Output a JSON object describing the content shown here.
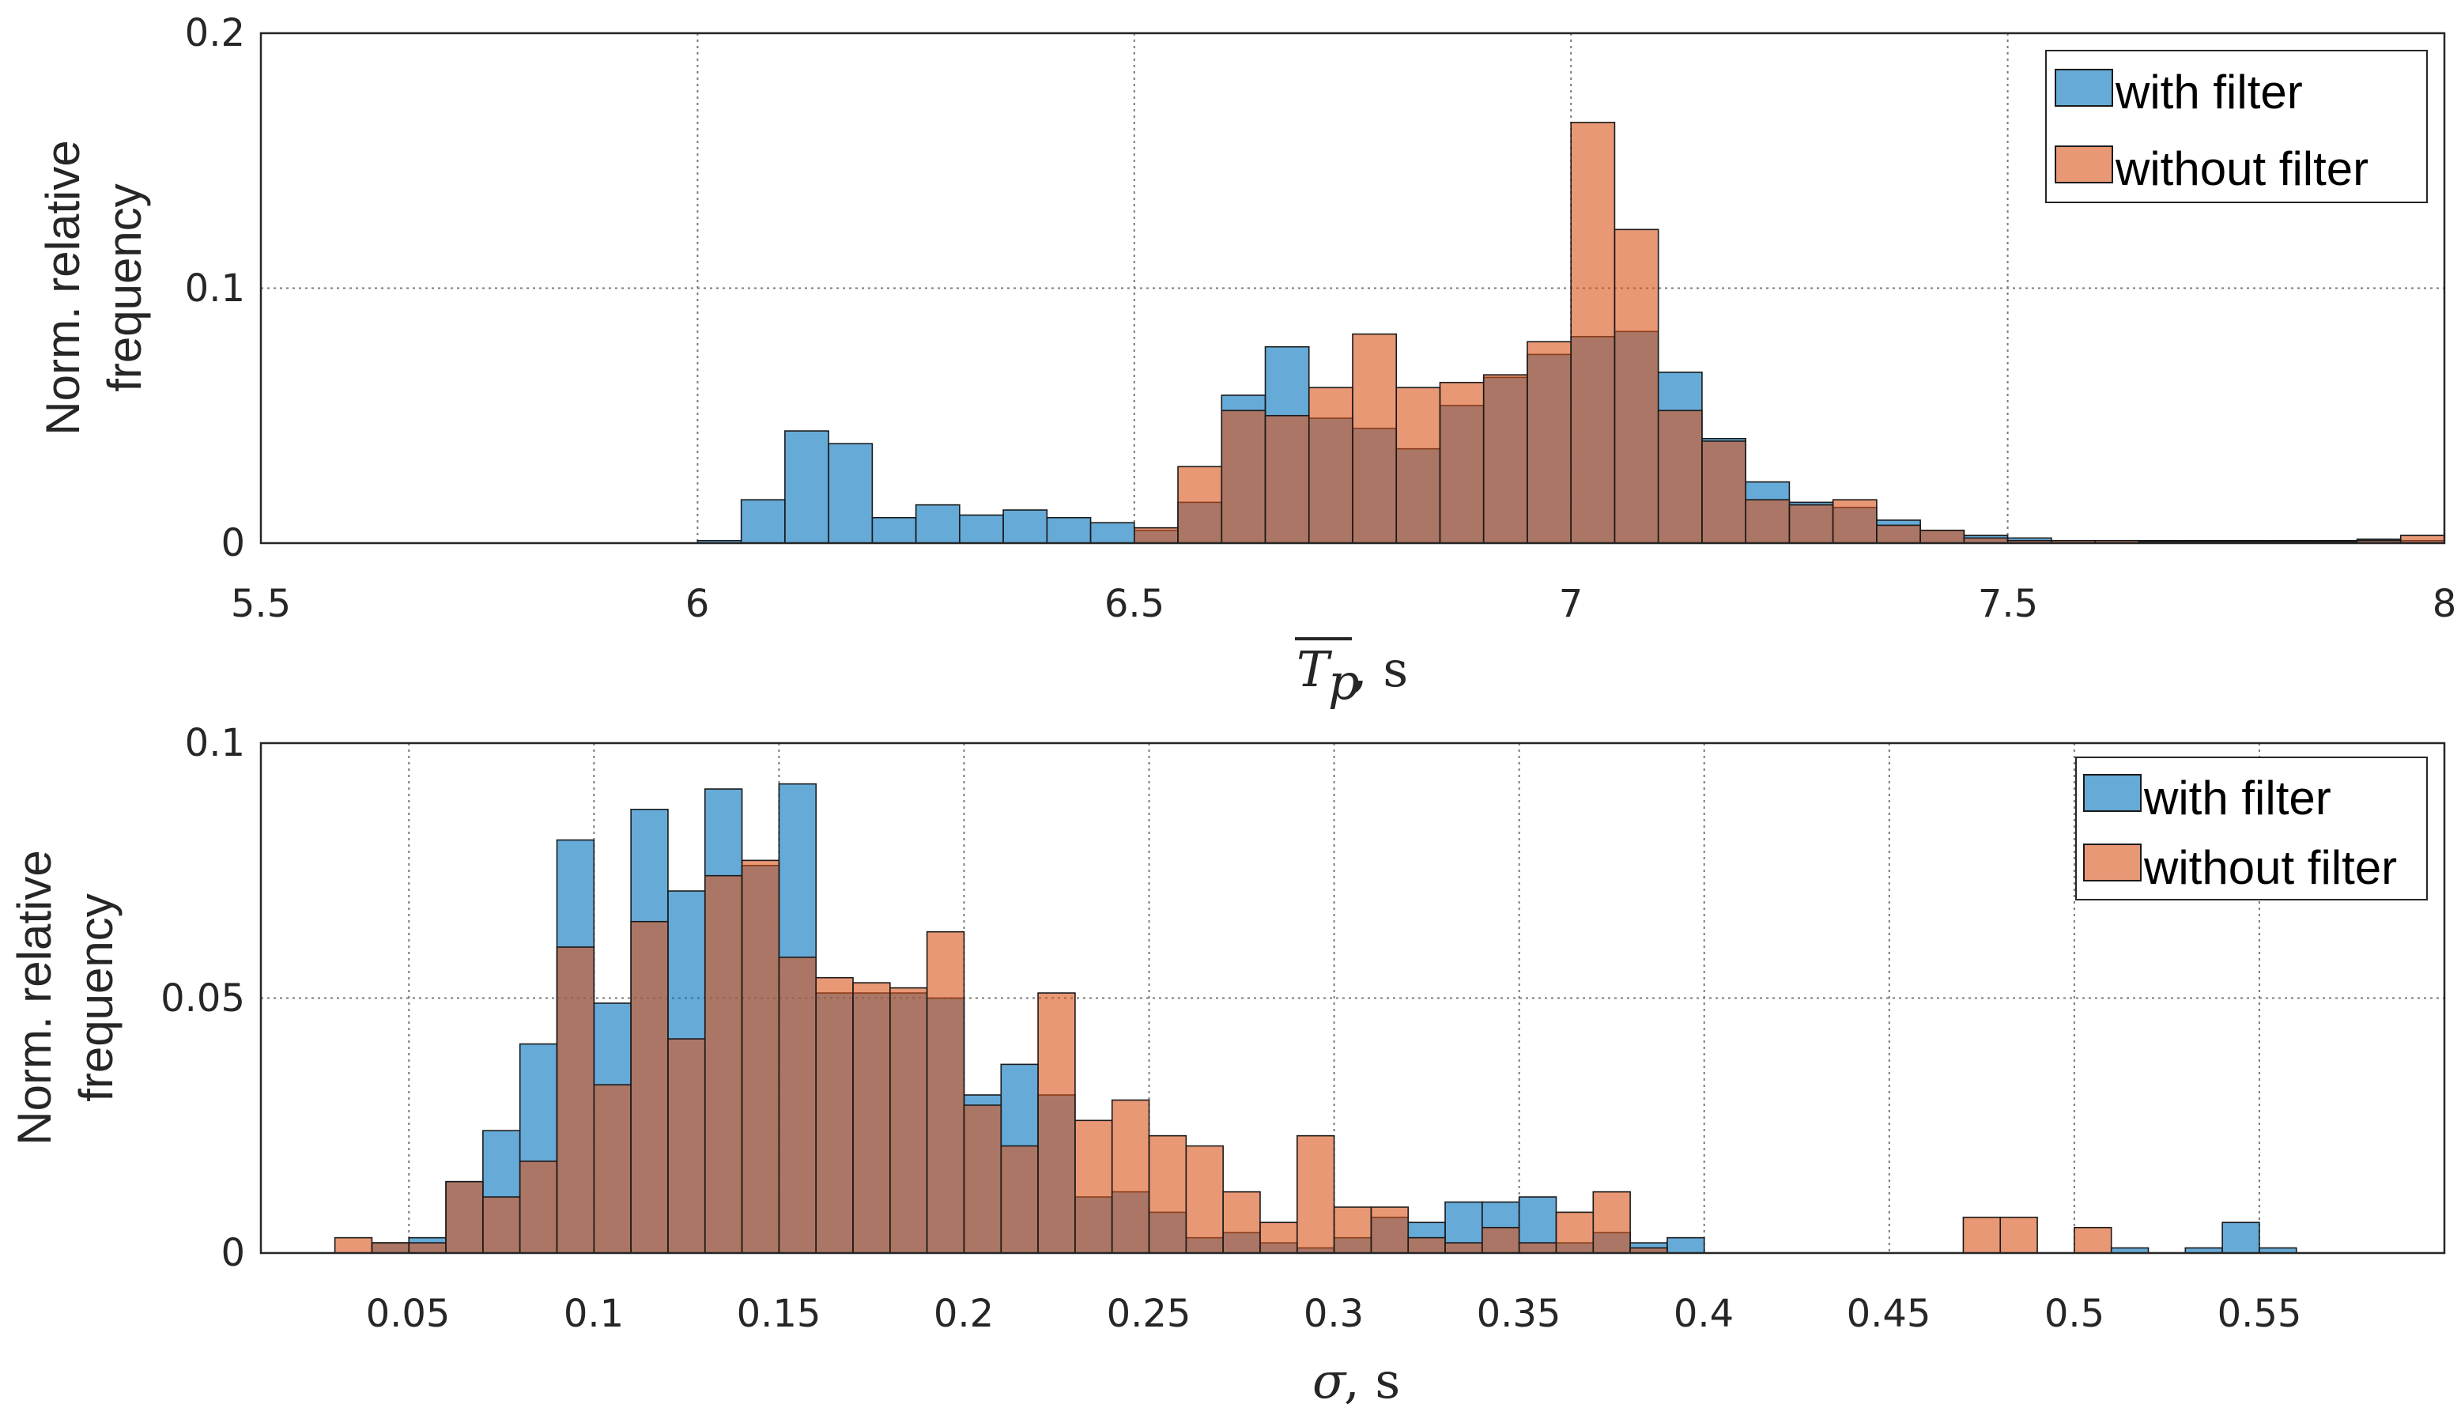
{
  "colors": {
    "with": "#0072BD",
    "without": "#D95319",
    "alpha": 0.6
  },
  "chart_data": [
    {
      "type": "bar",
      "subtype": "overlaid-histogram",
      "title": "",
      "ylabel": "Norm. relative frequency",
      "ylabel_lines": [
        "Norm. relative",
        "frequency"
      ],
      "xlabel_symbol": "T",
      "xlabel_sub": "p",
      "xlabel_unit": ", s",
      "xlim": [
        5.5,
        8
      ],
      "ylim": [
        0,
        0.2
      ],
      "xticks": [
        5.5,
        6,
        6.5,
        7,
        7.5,
        8
      ],
      "xtick_labels": [
        "5.5",
        "6",
        "6.5",
        "7",
        "7.5",
        "8"
      ],
      "yticks": [
        0,
        0.1,
        0.2
      ],
      "ytick_labels": [
        "0",
        "0.1",
        "0.2"
      ],
      "legend": [
        "with filter",
        "without filter"
      ],
      "legend_position": "top-right",
      "bin_width": 0.05,
      "series": [
        {
          "name": "with filter",
          "bin_starts": [
            6.0,
            6.05,
            6.1,
            6.15,
            6.2,
            6.25,
            6.3,
            6.35,
            6.4,
            6.45,
            6.5,
            6.55,
            6.6,
            6.65,
            6.7,
            6.75,
            6.8,
            6.85,
            6.9,
            6.95,
            7.0,
            7.05,
            7.1,
            7.15,
            7.2,
            7.25,
            7.3,
            7.35,
            7.4,
            7.45,
            7.5,
            7.55,
            7.6,
            7.65,
            7.7,
            7.75,
            7.8,
            7.85,
            7.9,
            7.95
          ],
          "values": [
            0.001,
            0.017,
            0.044,
            0.039,
            0.01,
            0.015,
            0.011,
            0.013,
            0.01,
            0.008,
            0.005,
            0.016,
            0.058,
            0.077,
            0.049,
            0.045,
            0.037,
            0.054,
            0.065,
            0.074,
            0.081,
            0.083,
            0.067,
            0.041,
            0.024,
            0.016,
            0.014,
            0.009,
            0.005,
            0.003,
            0.002,
            0.001,
            0.001,
            0.001,
            0.001,
            0.001,
            0.001,
            0.001,
            0.0015,
            0.001
          ]
        },
        {
          "name": "without filter",
          "bin_starts": [
            6.5,
            6.55,
            6.6,
            6.65,
            6.7,
            6.75,
            6.8,
            6.85,
            6.9,
            6.95,
            7.0,
            7.05,
            7.1,
            7.15,
            7.2,
            7.25,
            7.3,
            7.35,
            7.4,
            7.45,
            7.5,
            7.55,
            7.6,
            7.65,
            7.7,
            7.75,
            7.8,
            7.85,
            7.9,
            7.95
          ],
          "values": [
            0.006,
            0.03,
            0.052,
            0.05,
            0.061,
            0.082,
            0.061,
            0.063,
            0.066,
            0.079,
            0.165,
            0.123,
            0.052,
            0.04,
            0.017,
            0.015,
            0.017,
            0.007,
            0.005,
            0.002,
            0.001,
            0.001,
            0.001,
            0.0005,
            0.0005,
            0.0005,
            0.0005,
            0.0005,
            0.001,
            0.003
          ]
        }
      ]
    },
    {
      "type": "bar",
      "subtype": "overlaid-histogram",
      "title": "",
      "ylabel": "Norm. relative frequency",
      "ylabel_lines": [
        "Norm. relative",
        "frequency"
      ],
      "xlabel_symbol": "σ",
      "xlabel_unit": ", s",
      "xlim": [
        0.01,
        0.6
      ],
      "ylim": [
        0,
        0.1
      ],
      "xticks": [
        0.05,
        0.1,
        0.15,
        0.2,
        0.25,
        0.3,
        0.35,
        0.4,
        0.45,
        0.5,
        0.55
      ],
      "xtick_labels": [
        "0.05",
        "0.1",
        "0.15",
        "0.2",
        "0.25",
        "0.3",
        "0.35",
        "0.4",
        "0.45",
        "0.5",
        "0.55"
      ],
      "yticks": [
        0,
        0.05,
        0.1
      ],
      "ytick_labels": [
        "0",
        "0.05",
        "0.1"
      ],
      "legend": [
        "with filter",
        "without filter"
      ],
      "legend_position": "top-right",
      "bin_width": 0.01,
      "series": [
        {
          "name": "with filter",
          "bin_starts": [
            0.04,
            0.05,
            0.06,
            0.07,
            0.08,
            0.09,
            0.1,
            0.11,
            0.12,
            0.13,
            0.14,
            0.15,
            0.16,
            0.17,
            0.18,
            0.19,
            0.2,
            0.21,
            0.22,
            0.23,
            0.24,
            0.25,
            0.26,
            0.27,
            0.28,
            0.29,
            0.3,
            0.31,
            0.32,
            0.33,
            0.34,
            0.35,
            0.36,
            0.37,
            0.38,
            0.39,
            0.51,
            0.53,
            0.54,
            0.55
          ],
          "values": [
            0.002,
            0.003,
            0.014,
            0.024,
            0.041,
            0.081,
            0.049,
            0.087,
            0.071,
            0.091,
            0.076,
            0.092,
            0.051,
            0.051,
            0.051,
            0.05,
            0.031,
            0.037,
            0.031,
            0.011,
            0.012,
            0.008,
            0.003,
            0.004,
            0.002,
            0.001,
            0.003,
            0.007,
            0.006,
            0.01,
            0.01,
            0.011,
            0.002,
            0.004,
            0.002,
            0.003,
            0.001,
            0.001,
            0.006,
            0.001
          ]
        },
        {
          "name": "without filter",
          "bin_starts": [
            0.03,
            0.04,
            0.05,
            0.06,
            0.07,
            0.08,
            0.09,
            0.1,
            0.11,
            0.12,
            0.13,
            0.14,
            0.15,
            0.16,
            0.17,
            0.18,
            0.19,
            0.2,
            0.21,
            0.22,
            0.23,
            0.24,
            0.25,
            0.26,
            0.27,
            0.28,
            0.29,
            0.3,
            0.31,
            0.32,
            0.33,
            0.34,
            0.35,
            0.36,
            0.37,
            0.38,
            0.47,
            0.48,
            0.5
          ],
          "values": [
            0.003,
            0.002,
            0.002,
            0.014,
            0.011,
            0.018,
            0.06,
            0.033,
            0.065,
            0.042,
            0.074,
            0.077,
            0.058,
            0.054,
            0.053,
            0.052,
            0.063,
            0.029,
            0.021,
            0.051,
            0.026,
            0.03,
            0.023,
            0.021,
            0.012,
            0.006,
            0.023,
            0.009,
            0.009,
            0.003,
            0.002,
            0.005,
            0.002,
            0.008,
            0.012,
            0.001,
            0.007,
            0.007,
            0.005
          ]
        }
      ]
    }
  ]
}
